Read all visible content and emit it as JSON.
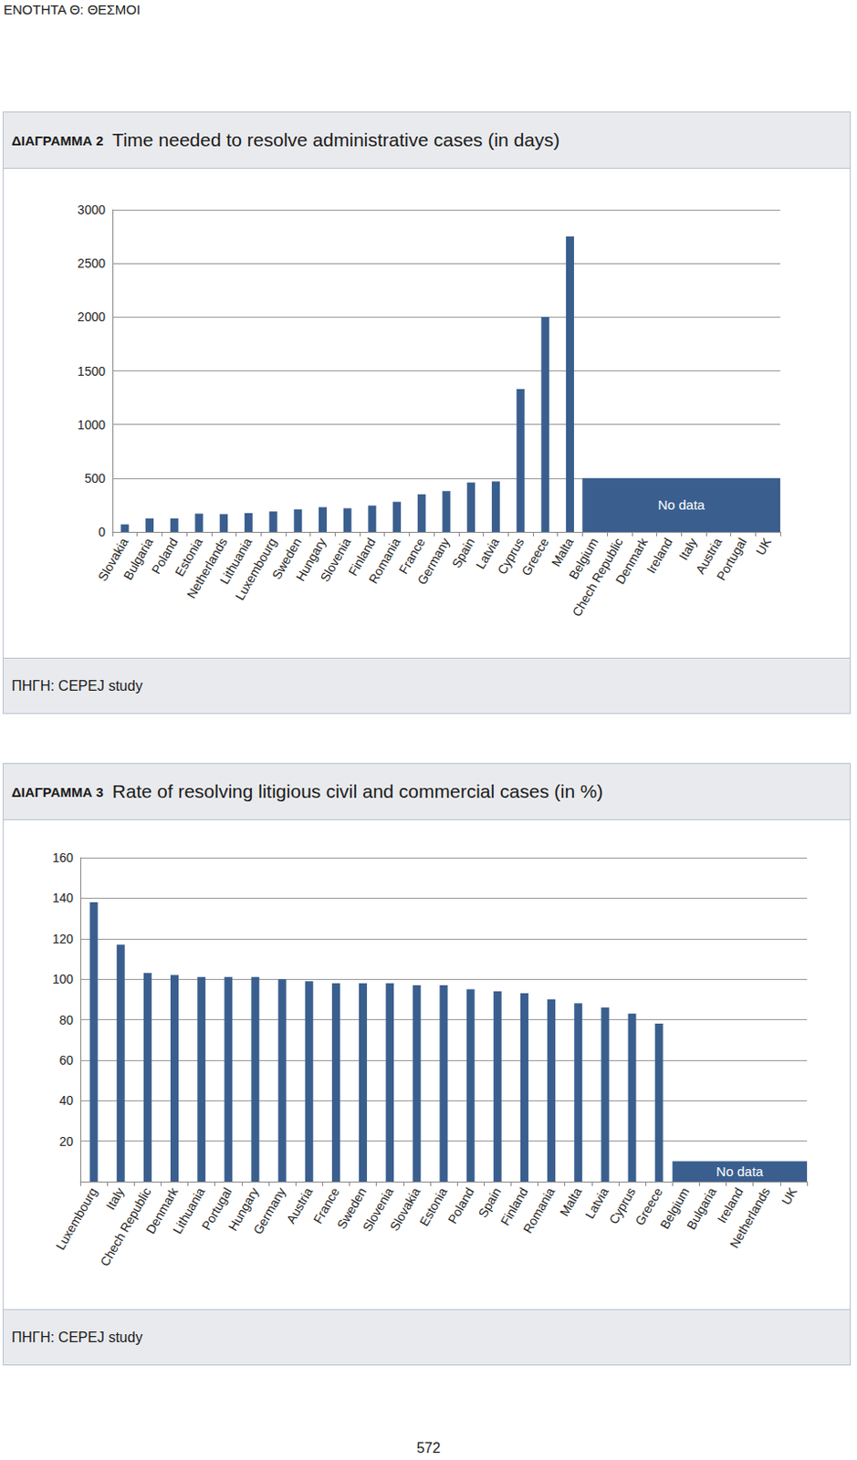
{
  "header": "ΕΝΟΤΗΤΑ Θ: ΘΕΣΜΟΙ",
  "page_number": "572",
  "chart_data": [
    {
      "type": "bar",
      "figure_label": "ΔΙΑΓΡΑΜΜΑ 2",
      "title": "Time needed to resolve administrative cases (in days)",
      "source": "ΠΗΓΗ: CEPEJ study",
      "categories": [
        "Slovakia",
        "Bulgaria",
        "Poland",
        "Estonia",
        "Netherlands",
        "Lithuania",
        "Luxembourg",
        "Sweden",
        "Hungary",
        "Slovenia",
        "Finland",
        "Romania",
        "France",
        "Germany",
        "Spain",
        "Latvia",
        "Cyprus",
        "Greece",
        "Malta",
        "Belgium",
        "Chech Republic",
        "Denmark",
        "Ireland",
        "Italy",
        "Austria",
        "Portugal",
        "UK"
      ],
      "values": [
        70,
        125,
        125,
        170,
        165,
        175,
        190,
        210,
        230,
        220,
        245,
        280,
        350,
        380,
        460,
        470,
        1330,
        2000,
        2750,
        null,
        null,
        null,
        null,
        null,
        null,
        null,
        null
      ],
      "color": "#3a5f8f",
      "ylim": [
        0,
        3000
      ],
      "yticks": [
        0,
        500,
        1000,
        1500,
        2000,
        2500,
        3000
      ],
      "grid": true,
      "annotations": [
        {
          "text": "No data",
          "x_start": "Belgium",
          "x_end": "UK",
          "y_start": 0,
          "y_end": 500
        }
      ]
    },
    {
      "type": "bar",
      "figure_label": "ΔΙΑΓΡΑΜΜΑ 3",
      "title": "Rate of resolving litigious civil and commercial cases (in %)",
      "source": "ΠΗΓΗ: CEPEJ study",
      "categories": [
        "Luxembourg",
        "Italy",
        "Chech Republic",
        "Denmark",
        "Lithuania",
        "Portugal",
        "Hungary",
        "Germany",
        "Austria",
        "France",
        "Sweden",
        "Slovenia",
        "Slovakia",
        "Estonia",
        "Poland",
        "Spain",
        "Finland",
        "Romania",
        "Malta",
        "Latvia",
        "Cyprus",
        "Greece",
        "Belgium",
        "Bulgaria",
        "Ireland",
        "Netherlands",
        "UK"
      ],
      "values": [
        138,
        117,
        103,
        102,
        101,
        101,
        101,
        100,
        99,
        98,
        98,
        98,
        97,
        97,
        95,
        94,
        93,
        90,
        88,
        86,
        83,
        78,
        null,
        null,
        null,
        null,
        null
      ],
      "color": "#3a5f8f",
      "ylim": [
        0,
        160
      ],
      "yticks": [
        20,
        40,
        60,
        80,
        100,
        120,
        140,
        160
      ],
      "grid": true,
      "annotations": [
        {
          "text": "No data",
          "x_start": "Belgium",
          "x_end": "UK",
          "y_start": 0,
          "y_end": 10
        }
      ]
    }
  ]
}
